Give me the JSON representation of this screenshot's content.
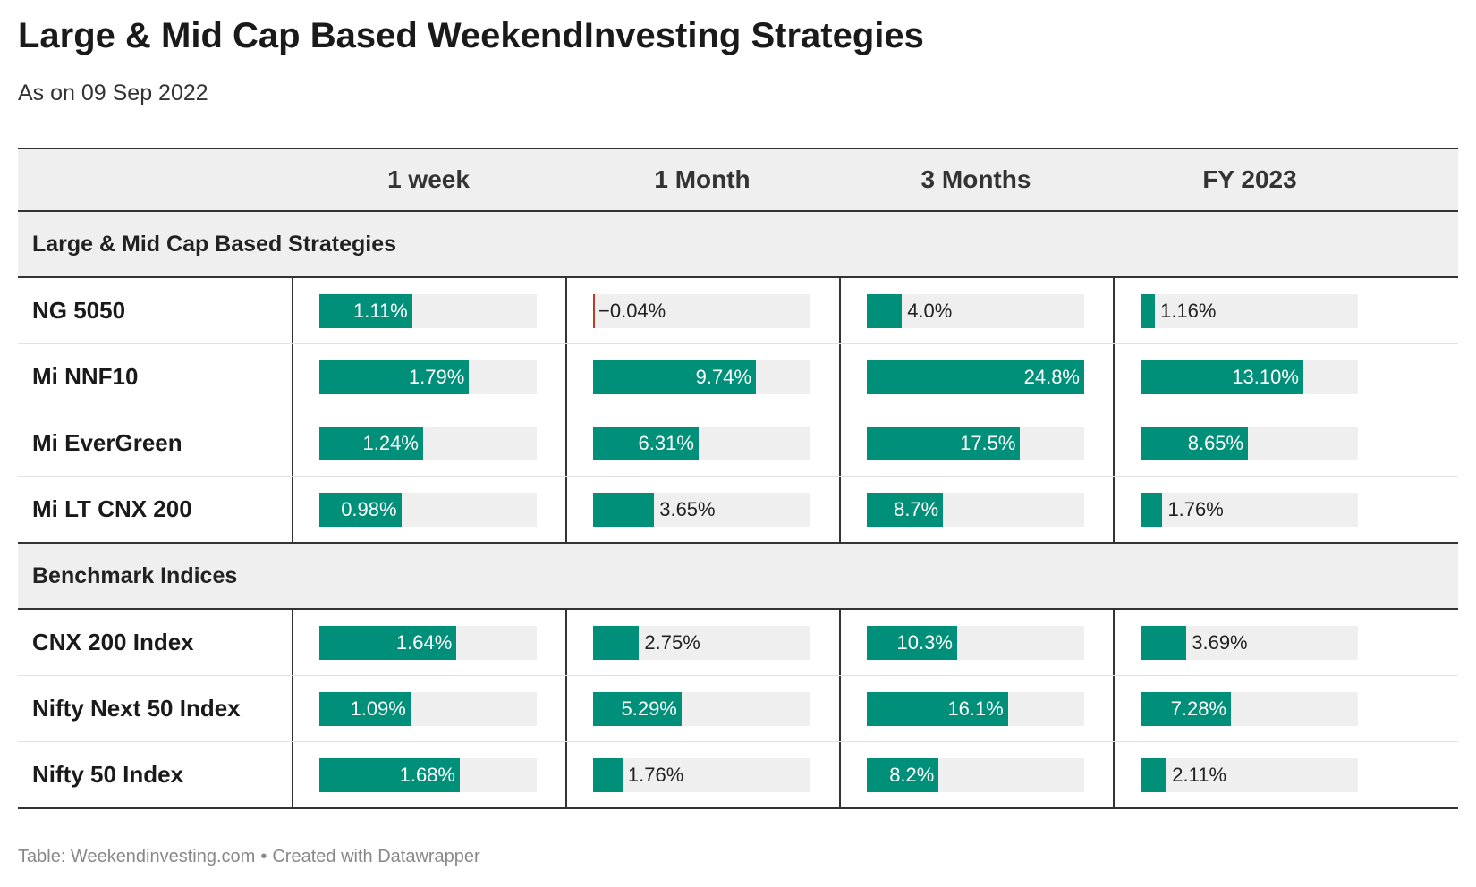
{
  "title": "Large & Mid Cap Based WeekendInvesting Strategies",
  "subtitle": "As on 09 Sep 2022",
  "footer": {
    "source": "Table: Weekendinvesting.com",
    "separator": "•",
    "credit": "Created with Datawrapper"
  },
  "colors": {
    "bar": "#00907a",
    "track": "#efefef",
    "negative": "#c0392b"
  },
  "chart_data": {
    "type": "table",
    "title": "Large & Mid Cap Based WeekendInvesting Strategies",
    "subtitle": "As on 09 Sep 2022",
    "columns": [
      "1 week",
      "1 Month",
      "3 Months",
      "FY 2023"
    ],
    "column_max": [
      2.6,
      13.0,
      24.8,
      17.5
    ],
    "groups": [
      {
        "name": "Large & Mid Cap Based Strategies",
        "rows": [
          {
            "label": "NG 5050",
            "values": [
              1.11,
              -0.04,
              4.0,
              1.16
            ],
            "display": [
              "1.11%",
              "−0.04%",
              "4.0%",
              "1.16%"
            ]
          },
          {
            "label": "Mi NNF10",
            "values": [
              1.79,
              9.74,
              24.8,
              13.1
            ],
            "display": [
              "1.79%",
              "9.74%",
              "24.8%",
              "13.10%"
            ]
          },
          {
            "label": "Mi EverGreen",
            "values": [
              1.24,
              6.31,
              17.5,
              8.65
            ],
            "display": [
              "1.24%",
              "6.31%",
              "17.5%",
              "8.65%"
            ]
          },
          {
            "label": "Mi LT CNX 200",
            "values": [
              0.98,
              3.65,
              8.7,
              1.76
            ],
            "display": [
              "0.98%",
              "3.65%",
              "8.7%",
              "1.76%"
            ]
          }
        ]
      },
      {
        "name": "Benchmark Indices",
        "rows": [
          {
            "label": "CNX 200 Index",
            "values": [
              1.64,
              2.75,
              10.3,
              3.69
            ],
            "display": [
              "1.64%",
              "2.75%",
              "10.3%",
              "3.69%"
            ]
          },
          {
            "label": "Nifty Next 50 Index",
            "values": [
              1.09,
              5.29,
              16.1,
              7.28
            ],
            "display": [
              "1.09%",
              "5.29%",
              "16.1%",
              "7.28%"
            ]
          },
          {
            "label": "Nifty 50 Index",
            "values": [
              1.68,
              1.76,
              8.2,
              2.11
            ],
            "display": [
              "1.68%",
              "1.76%",
              "8.2%",
              "2.11%"
            ]
          }
        ]
      }
    ]
  }
}
